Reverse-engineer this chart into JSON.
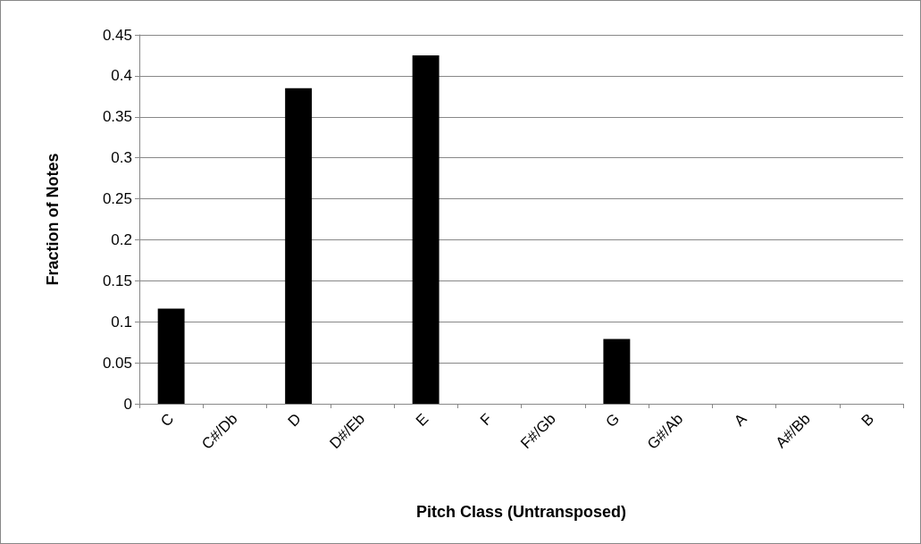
{
  "chart_data": {
    "type": "bar",
    "xlabel": "Pitch Class (Untransposed)",
    "ylabel": "Fraction of Notes",
    "categories": [
      "C",
      "C#/Db",
      "D",
      "D#/Eb",
      "E",
      "F",
      "F#/Gb",
      "G",
      "G#/Ab",
      "A",
      "A#/Bb",
      "B"
    ],
    "values": [
      0.116,
      0,
      0.385,
      0,
      0.425,
      0,
      0,
      0.079,
      0,
      0,
      0,
      0
    ],
    "color": "#000000",
    "ylim": [
      0,
      0.45
    ],
    "yticks": [
      0,
      0.05,
      0.1,
      0.15,
      0.2,
      0.25,
      0.3,
      0.35,
      0.4,
      0.45
    ],
    "grid": "y"
  }
}
